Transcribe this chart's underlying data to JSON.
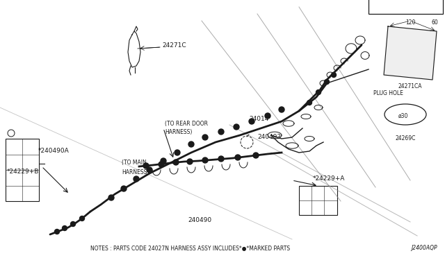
{
  "bg_color": "#ffffff",
  "line_color": "#1a1a1a",
  "gray_color": "#888888",
  "note_text": "NOTES : PARTS CODE 24027N HARNESS ASSY INCLUDES*●*MARKED PARTS",
  "diagram_id": "J2400AQP",
  "figsize": [
    6.4,
    3.72
  ],
  "dpi": 100,
  "xlim": [
    0,
    640
  ],
  "ylim": [
    0,
    372
  ]
}
